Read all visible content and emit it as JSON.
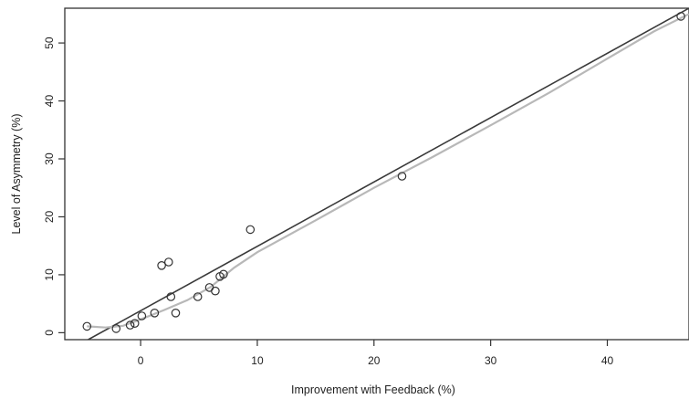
{
  "chart_data": {
    "type": "scatter",
    "title": "",
    "xlabel": "Improvement with Feedback (%)",
    "ylabel": "Level of Asymmetry (%)",
    "xlim": [
      -6.5,
      47
    ],
    "ylim": [
      -1.2,
      56
    ],
    "xticks": [
      0,
      10,
      20,
      30,
      40
    ],
    "yticks": [
      0,
      10,
      20,
      30,
      40,
      50
    ],
    "xtick_labels": [
      "0",
      "10",
      "20",
      "30",
      "40"
    ],
    "ytick_labels": [
      "0",
      "10",
      "20",
      "30",
      "40",
      "50"
    ],
    "grid": false,
    "series": [
      {
        "kind": "points",
        "marker": "open-circle",
        "color": "#333333",
        "points": [
          [
            -4.6,
            1.1
          ],
          [
            -2.1,
            0.7
          ],
          [
            -0.9,
            1.3
          ],
          [
            -0.5,
            1.6
          ],
          [
            0.1,
            2.9
          ],
          [
            1.2,
            3.4
          ],
          [
            1.8,
            11.6
          ],
          [
            2.4,
            12.2
          ],
          [
            2.6,
            6.2
          ],
          [
            3.0,
            3.4
          ],
          [
            4.9,
            6.2
          ],
          [
            5.9,
            7.8
          ],
          [
            6.4,
            7.2
          ],
          [
            6.8,
            9.7
          ],
          [
            7.1,
            10.1
          ],
          [
            9.4,
            17.8
          ],
          [
            22.4,
            27.0
          ],
          [
            46.3,
            54.6
          ]
        ]
      },
      {
        "kind": "line",
        "style": "regression",
        "color": "#3a3a3a",
        "points": [
          [
            -4.5,
            -1.2
          ],
          [
            47,
            56
          ]
        ]
      },
      {
        "kind": "line",
        "style": "smoother",
        "color": "#b8b8b8",
        "points": [
          [
            -4.6,
            1.1
          ],
          [
            -3.0,
            0.9
          ],
          [
            -1.5,
            1.2
          ],
          [
            0,
            2.3
          ],
          [
            2,
            3.9
          ],
          [
            4,
            5.6
          ],
          [
            6,
            7.9
          ],
          [
            8,
            11.2
          ],
          [
            10,
            13.9
          ],
          [
            15,
            19.4
          ],
          [
            20,
            25.0
          ],
          [
            25,
            30.3
          ],
          [
            30,
            35.8
          ],
          [
            35,
            41.4
          ],
          [
            40,
            47.3
          ],
          [
            44,
            52.0
          ],
          [
            47,
            55.0
          ]
        ]
      }
    ]
  }
}
